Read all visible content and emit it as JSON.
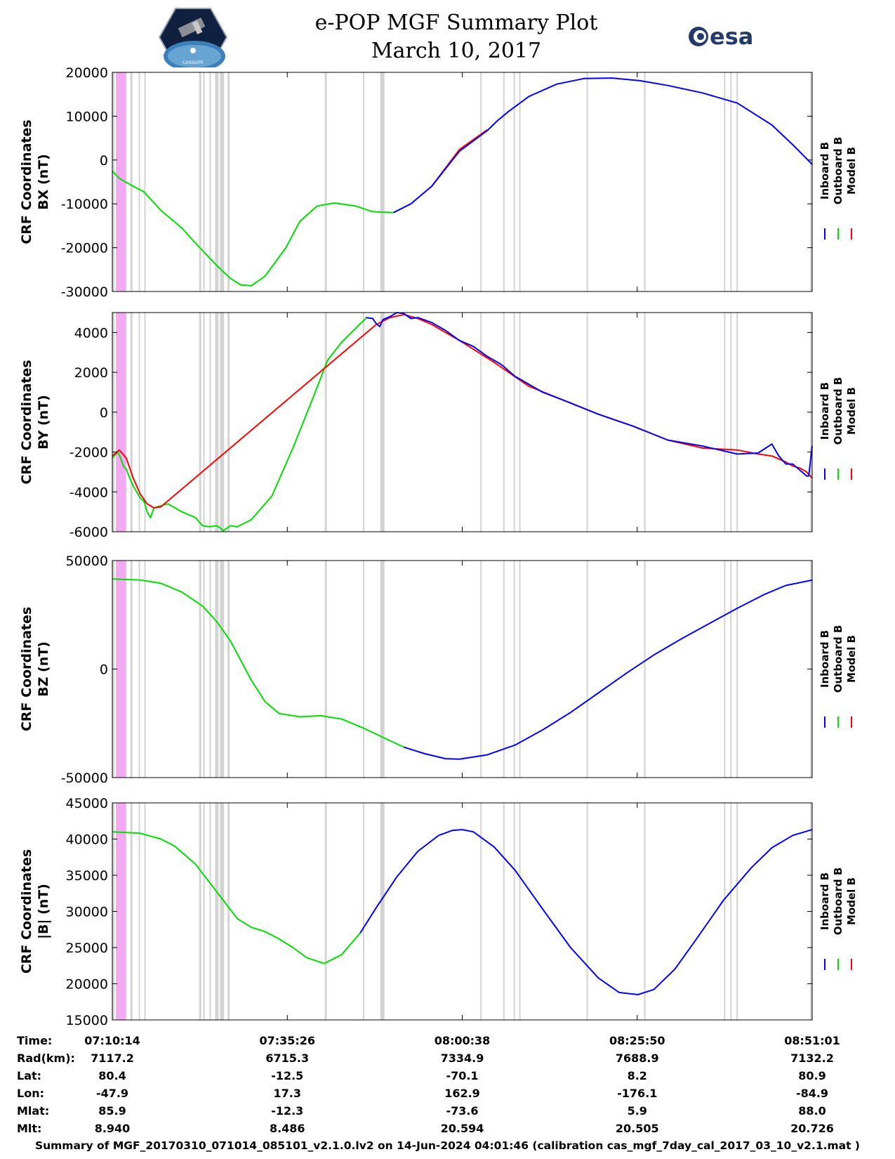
{
  "header": {
    "title": "e-POP MGF Summary Plot",
    "date": "March 10, 2017",
    "left_logo_caption": "CASSIOPE",
    "right_logo_text": "esa"
  },
  "colors": {
    "inboard": "#0000ff",
    "outboard": "#00dd00",
    "model": "#ff0000",
    "gap_gray": "#d3d3d3",
    "gap_magenta": "#f3aaf3"
  },
  "chart_data": {
    "type": "line",
    "x_unit": "minutes since 07:10:14",
    "xlim": [
      0,
      100.8
    ],
    "x_ticks": [
      0,
      25.2,
      50.4,
      75.6,
      100.8
    ],
    "legend": [
      "Inboard B",
      "Outboard B",
      "Model B"
    ],
    "legend_colors": [
      "#0000ff",
      "#00dd00",
      "#ff0000"
    ],
    "gap_bands_magenta": [
      [
        0.5,
        2.0
      ]
    ],
    "gap_bands_gray": [
      [
        0.0,
        0.3
      ],
      [
        2.6,
        2.9
      ],
      [
        3.8,
        4.0
      ],
      [
        4.6,
        4.8
      ],
      [
        12.5,
        12.8
      ],
      [
        13.1,
        13.3
      ],
      [
        14.0,
        14.2
      ],
      [
        14.8,
        15.3
      ],
      [
        15.5,
        16.1
      ],
      [
        16.6,
        16.9
      ],
      [
        30.6,
        30.9
      ],
      [
        36.1,
        36.3
      ],
      [
        38.6,
        39.2
      ],
      [
        53.0,
        53.2
      ],
      [
        56.3,
        56.5
      ],
      [
        57.8,
        58.0
      ],
      [
        58.6,
        58.8
      ],
      [
        68.3,
        68.5
      ],
      [
        76.6,
        76.8
      ],
      [
        88.1,
        88.3
      ],
      [
        89.0,
        89.2
      ],
      [
        89.9,
        90.1
      ],
      [
        100.5,
        100.8
      ]
    ],
    "panels": [
      {
        "title": "CRF Coordinates",
        "ylabel": "BX (nT)",
        "ylim": [
          -30000,
          20000
        ],
        "yticks": [
          -30000,
          -20000,
          -10000,
          0,
          10000,
          20000
        ],
        "series": [
          {
            "name": "Outboard B",
            "x": [
              0,
              1,
              3,
              4.5,
              7,
              10,
              12,
              15,
              17,
              18.5,
              20,
              22,
              25,
              27,
              29.5,
              32,
              35,
              37.5,
              40.5
            ],
            "values": [
              -2500,
              -4200,
              -6000,
              -7200,
              -11500,
              -15500,
              -19000,
              -24000,
              -27000,
              -28500,
              -28700,
              -26500,
              -20000,
              -14000,
              -10500,
              -9800,
              -10500,
              -11800,
              -12000
            ]
          },
          {
            "name": "Inboard B",
            "x": [
              40.5,
              43,
              46,
              50,
              54,
              55.5,
              57,
              60,
              64,
              68,
              72,
              76,
              80,
              85,
              90,
              95,
              98,
              100.8
            ],
            "values": [
              -12000,
              -10000,
              -6000,
              2000,
              6700,
              9000,
              11000,
              14500,
              17300,
              18600,
              18700,
              18100,
              17000,
              15300,
              13000,
              8000,
              3500,
              -1000
            ]
          },
          {
            "name": "Model B",
            "x": [
              46,
              50,
              54
            ],
            "values": [
              -6000,
              2400,
              6900
            ]
          }
        ]
      },
      {
        "title": "CRF Coordinates",
        "ylabel": "BY (nT)",
        "ylim": [
          -6000,
          5000
        ],
        "yticks": [
          -6000,
          -4000,
          -2000,
          0,
          2000,
          4000
        ],
        "series": [
          {
            "name": "Outboard B",
            "x": [
              0,
              0.8,
              1.2,
              1.6,
              2.0,
              2.5,
              3.0,
              3.5,
              4.0,
              4.6,
              5.0,
              5.5,
              6.0,
              7.0,
              8.0,
              10.0,
              12.0,
              13.0,
              14.0,
              15.0,
              15.5,
              16.0,
              17.0,
              18.0,
              20.0,
              23.0,
              26.0,
              29.0,
              31.0,
              33.0,
              35.0,
              36.5
            ],
            "values": [
              -2300,
              -2000,
              -2300,
              -2700,
              -2850,
              -3300,
              -3700,
              -4000,
              -4300,
              -4500,
              -5000,
              -5300,
              -4800,
              -4700,
              -4600,
              -5000,
              -5300,
              -5700,
              -5750,
              -5700,
              -5800,
              -5950,
              -5700,
              -5750,
              -5400,
              -4200,
              -1800,
              800,
              2600,
              3500,
              4200,
              4700
            ]
          },
          {
            "name": "Inboard B",
            "x": [
              36.5,
              37.5,
              38.0,
              38.5,
              39.0,
              40.0,
              41.0,
              42.0,
              43.0,
              44.0,
              46.0,
              48.0,
              50.0,
              52.0,
              54.0,
              56.0,
              58.0,
              60.0,
              62.0,
              65.0,
              70.0,
              75.0,
              80.0,
              85.0,
              90.0,
              93.0,
              95.0,
              96.0,
              97.0,
              98.0,
              99.0,
              100.0,
              100.3,
              100.8
            ],
            "values": [
              4750,
              4700,
              4450,
              4300,
              4650,
              4800,
              5000,
              4950,
              4700,
              4750,
              4500,
              4100,
              3600,
              3300,
              2800,
              2400,
              1800,
              1400,
              1000,
              600,
              -100,
              -700,
              -1400,
              -1700,
              -2100,
              -2050,
              -1600,
              -2200,
              -2600,
              -2600,
              -2900,
              -3200,
              -3200,
              -1700
            ]
          },
          {
            "name": "Model B",
            "x": [
              0,
              1,
              2,
              3,
              4,
              5,
              6,
              7,
              38,
              40,
              42,
              44,
              46,
              48,
              50,
              55,
              60,
              65,
              70,
              75,
              80,
              85,
              90,
              93,
              95,
              97,
              98,
              99,
              100,
              100.8
            ],
            "values": [
              -2200,
              -1900,
              -2300,
              -3300,
              -4100,
              -4600,
              -4800,
              -4750,
              4400,
              4750,
              4900,
              4700,
              4400,
              4000,
              3600,
              2500,
              1300,
              600,
              -100,
              -700,
              -1400,
              -1800,
              -1900,
              -2100,
              -2200,
              -2500,
              -2700,
              -2800,
              -3000,
              -3300
            ]
          }
        ]
      },
      {
        "title": "CRF Coordinates",
        "ylabel": "BZ (nT)",
        "ylim": [
          -50000,
          50000
        ],
        "yticks": [
          -50000,
          0,
          50000
        ],
        "series": [
          {
            "name": "Outboard B",
            "x": [
              0,
              4,
              7,
              10,
              13,
              15,
              17,
              20,
              22,
              24,
              27,
              30,
              33,
              36,
              40,
              42
            ],
            "values": [
              41500,
              41000,
              39500,
              35500,
              29000,
              22000,
              13000,
              -5000,
              -15000,
              -20500,
              -22000,
              -21500,
              -23000,
              -27000,
              -33000,
              -36000
            ]
          },
          {
            "name": "Inboard B",
            "x": [
              42,
              45,
              48,
              50,
              54,
              58,
              62,
              66,
              70,
              74,
              78,
              82,
              86,
              90,
              94,
              97,
              100.8
            ],
            "values": [
              -36000,
              -39000,
              -41300,
              -41500,
              -39500,
              -35000,
              -28000,
              -20000,
              -11000,
              -2000,
              6500,
              14000,
              21000,
              28000,
              34500,
              38500,
              41000
            ]
          },
          {
            "name": "Model B",
            "x": [],
            "values": []
          }
        ]
      },
      {
        "title": "CRF Coordinates",
        "ylabel": "|B| (nT)",
        "ylim": [
          15000,
          45000
        ],
        "yticks": [
          15000,
          20000,
          25000,
          30000,
          35000,
          40000,
          45000
        ],
        "series": [
          {
            "name": "Outboard B",
            "x": [
              0,
              4,
              7,
              9,
              12,
              14,
              16,
              18,
              20,
              22,
              24,
              26,
              28,
              30.5,
              33,
              35.7
            ],
            "values": [
              41000,
              40800,
              40000,
              39000,
              36500,
              34000,
              31500,
              29000,
              27800,
              27200,
              26200,
              25000,
              23600,
              22800,
              24000,
              27000
            ]
          },
          {
            "name": "Inboard B",
            "x": [
              35.7,
              38,
              41,
              44,
              47,
              49,
              50.4,
              52,
              55,
              58,
              62,
              66,
              70,
              73,
              75.7,
              78,
              81,
              84,
              88,
              92,
              95,
              98,
              100.8
            ],
            "values": [
              27000,
              30500,
              34800,
              38300,
              40500,
              41200,
              41300,
              41000,
              38900,
              35700,
              30300,
              25000,
              20800,
              18800,
              18500,
              19200,
              22000,
              26000,
              31500,
              36000,
              38800,
              40500,
              41300
            ]
          },
          {
            "name": "Model B",
            "x": [],
            "values": []
          }
        ]
      }
    ]
  },
  "ephemeris": {
    "labels": [
      "Time:",
      "Rad(km):",
      "Lat:",
      "Lon:",
      "Mlat:",
      "Mlt:"
    ],
    "columns": [
      [
        "07:10:14",
        "7117.2",
        "80.4",
        "-47.9",
        "85.9",
        "8.940"
      ],
      [
        "07:35:26",
        "6715.3",
        "-12.5",
        "17.3",
        "-12.3",
        "8.486"
      ],
      [
        "08:00:38",
        "7334.9",
        "-70.1",
        "162.9",
        "-73.6",
        "20.594"
      ],
      [
        "08:25:50",
        "7688.9",
        "8.2",
        "-176.1",
        "5.9",
        "20.505"
      ],
      [
        "08:51:01",
        "7132.2",
        "80.9",
        "-84.9",
        "88.0",
        "20.726"
      ]
    ]
  },
  "footer": "Summary of MGF_20170310_071014_085101_v2.1.0.lv2 on 14-Jun-2024 04:01:46 (calibration cas_mgf_7day_cal_2017_03_10_v2.1.mat )"
}
